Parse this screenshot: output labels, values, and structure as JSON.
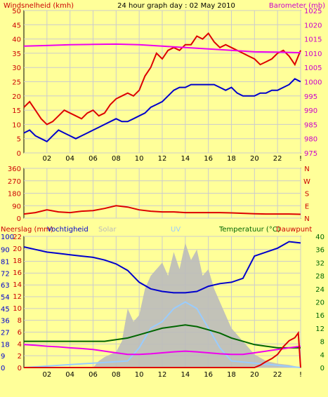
{
  "chart_data": [
    {
      "type": "line",
      "title": "24 hour graph day : 02 May 2010",
      "left_axis_label": "Windsnelheid (kmh)",
      "right_axis_label": "Barometer (mb)",
      "x_ticks": [
        "02",
        "04",
        "06",
        "08",
        "10",
        "12",
        "14",
        "16",
        "18",
        "20",
        "22",
        "!"
      ],
      "x_range": [
        0,
        24
      ],
      "y_left_ticks": [
        0,
        5,
        10,
        15,
        20,
        25,
        30,
        35,
        40,
        45,
        50
      ],
      "y_left_range": [
        0,
        50
      ],
      "y_right_ticks": [
        975,
        980,
        985,
        990,
        995,
        1000,
        1005,
        1010,
        1015,
        1020,
        1025
      ],
      "y_right_range": [
        975,
        1025
      ],
      "series": [
        {
          "color": "#dd0000",
          "axis": "left",
          "x": [
            0,
            0.5,
            1,
            1.5,
            2,
            2.5,
            3,
            3.5,
            4,
            4.5,
            5,
            5.5,
            6,
            6.5,
            7,
            7.5,
            8,
            8.5,
            9,
            9.5,
            10,
            10.5,
            11,
            11.5,
            12,
            12.5,
            13,
            13.5,
            14,
            14.5,
            15,
            15.5,
            16,
            16.5,
            17,
            17.5,
            18,
            18.5,
            19,
            19.5,
            20,
            20.5,
            21,
            21.5,
            22,
            22.5,
            23,
            23.5,
            24
          ],
          "values": [
            16,
            18,
            15,
            12,
            10,
            11,
            13,
            15,
            14,
            13,
            12,
            14,
            15,
            13,
            14,
            17,
            19,
            20,
            21,
            20,
            22,
            27,
            30,
            35,
            33,
            36,
            37,
            36,
            38,
            38,
            41,
            40,
            42,
            39,
            37,
            38,
            37,
            36,
            35,
            34,
            33,
            31,
            32,
            33,
            35,
            36,
            34,
            31,
            36
          ]
        },
        {
          "color": "#0000cc",
          "axis": "left",
          "x": [
            0,
            0.5,
            1,
            1.5,
            2,
            2.5,
            3,
            3.5,
            4,
            4.5,
            5,
            5.5,
            6,
            6.5,
            7,
            7.5,
            8,
            8.5,
            9,
            9.5,
            10,
            10.5,
            11,
            11.5,
            12,
            12.5,
            13,
            13.5,
            14,
            14.5,
            15,
            15.5,
            16,
            16.5,
            17,
            17.5,
            18,
            18.5,
            19,
            19.5,
            20,
            20.5,
            21,
            21.5,
            22,
            22.5,
            23,
            23.5,
            24
          ],
          "values": [
            7,
            8,
            6,
            5,
            4,
            6,
            8,
            7,
            6,
            5,
            6,
            7,
            8,
            9,
            10,
            11,
            12,
            11,
            11,
            12,
            13,
            14,
            16,
            17,
            18,
            20,
            22,
            23,
            23,
            24,
            24,
            24,
            24,
            24,
            23,
            22,
            23,
            21,
            20,
            20,
            20,
            21,
            21,
            22,
            22,
            23,
            24,
            26,
            25
          ]
        },
        {
          "color": "#ee00ee",
          "axis": "right",
          "x": [
            0,
            2,
            4,
            6,
            8,
            10,
            12,
            14,
            16,
            18,
            20,
            22,
            24
          ],
          "values": [
            1012.5,
            1012.7,
            1013,
            1013.1,
            1013.2,
            1013,
            1012.5,
            1012,
            1011.5,
            1011,
            1010.5,
            1010.4,
            1010.2
          ]
        }
      ]
    },
    {
      "type": "line",
      "title": "",
      "x_ticks": [
        "02",
        "04",
        "06",
        "08",
        "10",
        "12",
        "14",
        "16",
        "18",
        "20",
        "22",
        "!"
      ],
      "x_range": [
        0,
        24
      ],
      "y_left_ticks": [
        0,
        90,
        180,
        270,
        360
      ],
      "y_left_range": [
        0,
        360
      ],
      "y_right_ticks": [
        "N",
        "W",
        "S",
        "E",
        "N"
      ],
      "series": [
        {
          "color": "#dd0000",
          "axis": "left",
          "x": [
            0,
            1,
            2,
            3,
            4,
            5,
            6,
            7,
            8,
            9,
            10,
            11,
            12,
            13,
            14,
            15,
            16,
            17,
            18,
            19,
            20,
            21,
            22,
            23,
            24
          ],
          "values": [
            30,
            40,
            60,
            45,
            40,
            50,
            55,
            70,
            90,
            80,
            60,
            50,
            45,
            45,
            40,
            40,
            40,
            40,
            38,
            35,
            32,
            30,
            30,
            30,
            28
          ]
        }
      ]
    },
    {
      "type": "area",
      "legend": [
        "Neerslag (mm)",
        "Vochtigheid",
        "Solar",
        "UV",
        "Temperatuur (°C)",
        "Dauwpunt"
      ],
      "legend_colors": [
        "#cc0000",
        "#0000cc",
        "#bbbbbb",
        "#99ccff",
        "#006600",
        "#cc0000"
      ],
      "x_ticks": [
        "02",
        "04",
        "06",
        "08",
        "10",
        "12",
        "14",
        "16",
        "18",
        "20",
        "22",
        "!"
      ],
      "x_range": [
        0,
        24
      ],
      "y_left_ticks": [
        0,
        2,
        4,
        6,
        8,
        10,
        12,
        14,
        16,
        18,
        20,
        22
      ],
      "y_left_range": [
        0,
        22
      ],
      "y_left2_ticks": [
        0,
        9,
        18,
        27,
        36,
        45,
        54,
        63,
        72,
        81,
        90,
        100
      ],
      "y_left2_range": [
        0,
        100
      ],
      "y_right_ticks": [
        0,
        4,
        8,
        12,
        16,
        20,
        24,
        28,
        32,
        36,
        40
      ],
      "y_right_range": [
        0,
        40
      ],
      "series": [
        {
          "name": "Solar",
          "kind": "area",
          "color": "#bbbbbb",
          "axis": "percent",
          "x": [
            0,
            6,
            6.5,
            7,
            7.5,
            8,
            8.5,
            9,
            9.5,
            10,
            10.5,
            11,
            11.5,
            12,
            12.5,
            13,
            13.5,
            14,
            14.5,
            15,
            15.5,
            16,
            16.5,
            17,
            17.5,
            18,
            18.5,
            19,
            19.5,
            20,
            21,
            22,
            23,
            24
          ],
          "values": [
            0,
            0,
            5,
            8,
            10,
            12,
            20,
            45,
            35,
            40,
            60,
            70,
            75,
            80,
            70,
            88,
            75,
            95,
            82,
            90,
            70,
            75,
            60,
            50,
            40,
            30,
            25,
            20,
            15,
            10,
            5,
            3,
            2,
            0
          ]
        },
        {
          "name": "UV",
          "kind": "line",
          "color": "#99ccff",
          "axis": "percent",
          "x": [
            0,
            9,
            10,
            11,
            12,
            13,
            14,
            15,
            16,
            17,
            18,
            24
          ],
          "values": [
            0,
            5,
            15,
            30,
            35,
            45,
            50,
            45,
            30,
            15,
            5,
            0
          ]
        },
        {
          "name": "Vochtigheid",
          "kind": "line",
          "color": "#0000cc",
          "axis": "percent",
          "x": [
            0,
            1,
            2,
            3,
            4,
            5,
            6,
            7,
            8,
            9,
            10,
            11,
            12,
            13,
            14,
            15,
            16,
            17,
            18,
            19,
            20,
            21,
            22,
            23,
            24
          ],
          "values": [
            92,
            90,
            88,
            87,
            86,
            85,
            84,
            82,
            79,
            74,
            65,
            60,
            58,
            57,
            57,
            58,
            62,
            64,
            65,
            68,
            85,
            88,
            91,
            96,
            95
          ]
        },
        {
          "name": "Temperatuur (°C)",
          "kind": "line",
          "color": "#006600",
          "axis": "right",
          "x": [
            0,
            1,
            2,
            3,
            4,
            5,
            6,
            7,
            8,
            9,
            10,
            11,
            12,
            13,
            14,
            15,
            16,
            17,
            18,
            19,
            20,
            21,
            22,
            23,
            24
          ],
          "values": [
            8,
            8,
            8,
            8,
            8,
            8,
            8,
            8,
            8.5,
            9,
            10,
            11,
            12,
            12.5,
            13,
            12.5,
            11.5,
            10.5,
            9,
            8,
            7,
            6.5,
            6,
            6,
            6
          ]
        },
        {
          "name": "Dauwpunt",
          "kind": "line",
          "color": "#ee00ee",
          "axis": "right",
          "x": [
            0,
            1,
            2,
            3,
            4,
            5,
            6,
            7,
            8,
            9,
            10,
            11,
            12,
            13,
            14,
            15,
            16,
            17,
            18,
            19,
            20,
            21,
            22,
            23,
            24
          ],
          "values": [
            7,
            6.8,
            6.5,
            6.3,
            6,
            5.8,
            5.5,
            5,
            4.5,
            4,
            4,
            4.2,
            4.5,
            4.8,
            5,
            4.8,
            4.5,
            4.2,
            4,
            4,
            4.5,
            5,
            5.5,
            6,
            6.5
          ]
        },
        {
          "name": "Neerslag (mm)",
          "kind": "line",
          "color": "#dd0000",
          "axis": "left",
          "x": [
            0,
            19,
            20,
            20.5,
            21,
            21.5,
            22,
            22.5,
            23,
            23.5,
            23.8,
            24
          ],
          "values": [
            0,
            0,
            0,
            0.4,
            1,
            1.5,
            2.2,
            3.5,
            4.5,
            5,
            5.8,
            0
          ]
        }
      ]
    }
  ]
}
